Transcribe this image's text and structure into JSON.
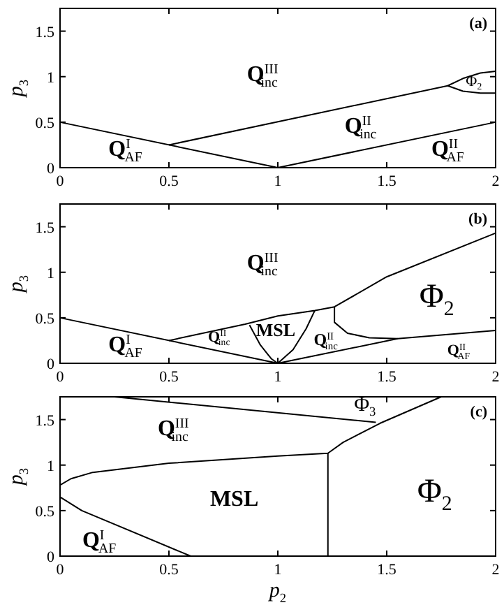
{
  "chart_data": [
    {
      "type": "line",
      "ylabel": "p$_{3}$",
      "xlim": [
        0,
        2
      ],
      "ylim": [
        0,
        1.75
      ],
      "xticks": [
        0,
        0.5,
        1,
        1.5,
        2
      ],
      "yticks": [
        0,
        0.5,
        1,
        1.5
      ],
      "grid": false,
      "marker": "none",
      "line_style": "solid",
      "series": [
        {
          "color": "#000000",
          "x": [
            0,
            1,
            2
          ],
          "values": [
            0.5,
            0,
            0.5
          ]
        },
        {
          "color": "#000000",
          "x": [
            0.5,
            1.78
          ],
          "values": [
            0.25,
            0.9
          ]
        },
        {
          "color": "#000000",
          "x": [
            2,
            1.93,
            1.85,
            1.78,
            1.85,
            1.93,
            2
          ],
          "values": [
            1.06,
            1.04,
            0.98,
            0.9,
            0.84,
            0.82,
            0.82
          ]
        }
      ],
      "annotations": [
        "(a)",
        "Q$^{III}$$_{inc}$",
        "Q$^{II}$$_{inc}$",
        "Q$^{I}$$_{AF}$",
        "Q$^{II}$$_{AF}$",
        "Φ$_{2}$"
      ]
    },
    {
      "type": "line",
      "ylabel": "p$_{3}$",
      "xlim": [
        0,
        2
      ],
      "ylim": [
        0,
        1.75
      ],
      "xticks": [
        0,
        0.5,
        1,
        1.5,
        2
      ],
      "yticks": [
        0,
        0.5,
        1,
        1.5
      ],
      "grid": false,
      "marker": "none",
      "line_style": "solid",
      "series": [
        {
          "color": "#000000",
          "x": [
            0,
            1,
            1.55,
            2
          ],
          "values": [
            0.5,
            0,
            0.27,
            0.36
          ]
        },
        {
          "color": "#000000",
          "x": [
            0.5,
            0.85,
            1,
            1.17,
            1.26,
            1.5,
            2
          ],
          "values": [
            0.25,
            0.43,
            0.52,
            0.58,
            0.62,
            0.95,
            1.43
          ]
        },
        {
          "color": "#000000",
          "x": [
            0.87,
            0.92,
            0.97,
            1,
            1.07,
            1.13,
            1.17
          ],
          "values": [
            0.42,
            0.2,
            0.05,
            0,
            0.15,
            0.38,
            0.58
          ]
        },
        {
          "color": "#000000",
          "x": [
            1.26,
            1.26,
            1.32,
            1.42,
            1.55
          ],
          "values": [
            0.62,
            0.45,
            0.33,
            0.28,
            0.27
          ]
        }
      ],
      "annotations": [
        "(b)",
        "Q$^{III}$$_{inc}$",
        "Q$^{I}$$_{AF}$",
        "Q$^{II}$$_{inc}$",
        "MSL",
        "Q$^{II}$$_{inc}$",
        "Φ$_{2}$",
        "Q$^{II}$$_{AF}$"
      ]
    },
    {
      "type": "line",
      "xlabel": "p$_{2}$",
      "ylabel": "p$_{3}$",
      "xlim": [
        0,
        2
      ],
      "ylim": [
        0,
        1.75
      ],
      "xticks": [
        0,
        0.5,
        1,
        1.5,
        2
      ],
      "yticks": [
        0,
        0.5,
        1,
        1.5
      ],
      "grid": false,
      "marker": "none",
      "line_style": "solid",
      "series": [
        {
          "color": "#000000",
          "x": [
            0.25,
            1.45
          ],
          "values": [
            1.75,
            1.47
          ]
        },
        {
          "color": "#000000",
          "x": [
            0,
            0.05,
            0.15,
            0.5,
            1,
            1.23,
            1.3,
            1.47,
            1.75
          ],
          "values": [
            0.78,
            0.85,
            0.92,
            1.02,
            1.1,
            1.13,
            1.25,
            1.46,
            1.75
          ]
        },
        {
          "color": "#000000",
          "x": [
            1.23,
            1.23
          ],
          "values": [
            0,
            1.13
          ]
        },
        {
          "color": "#000000",
          "x": [
            0,
            0.1,
            0.6
          ],
          "values": [
            0.65,
            0.5,
            0
          ]
        }
      ],
      "annotations": [
        "(c)",
        "Q$^{III}$$_{inc}$",
        "MSL",
        "Φ$_{2}$",
        "Φ$_{3}$",
        "Q$^{I}$$_{AF}$"
      ]
    }
  ]
}
